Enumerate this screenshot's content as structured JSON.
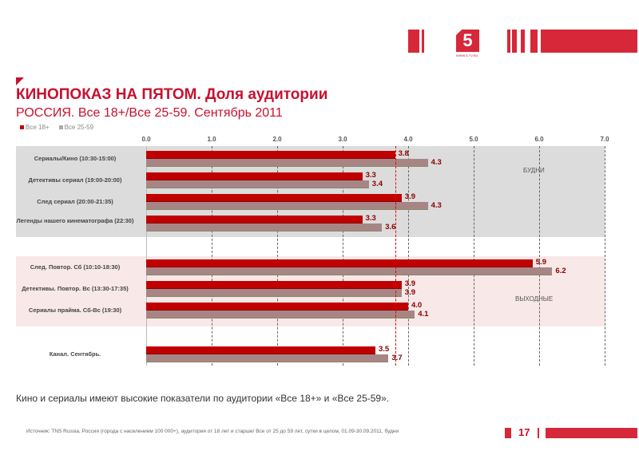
{
  "title": "КИНОПОКАЗ НА ПЯТОМ. Доля аудитории",
  "subtitle": "РОССИЯ. Все 18+/Все 25-59. Сентябрь 2011",
  "logo_text": "5",
  "logo_url": "WWW.5-TV.RU",
  "note": "Кино и сериалы имеют высокие показатели по аудитории «Все 18+» и «Все 25-59».",
  "source": "Источник: TNS Russia, Россия (города с населением 100 000+), аудитория от 18 лет и старше/ Все от 25 до 59 лет, сутки в целом, 01.09-30.09.2011, будни",
  "page_number": "17",
  "chart_data": {
    "type": "bar",
    "orientation": "horizontal",
    "xlim": [
      0,
      7
    ],
    "ticks": [
      "0.0",
      "1.0",
      "2.0",
      "3.0",
      "4.0",
      "5.0",
      "6.0",
      "7.0"
    ],
    "legend": [
      "Все 18+",
      "Все 25-59"
    ],
    "categories": [
      "Сериалы/Кино (10:30-15:00)",
      "Детективы сериал (19:00-20:00)",
      "След сериал (20:00-21:35)",
      "Легенды нашего кинематографа (22:30)",
      "След. Повтор. Сб (10:10-18:30)",
      "Детективы. Повтор. Вс (13:30-17:35)",
      "Сериалы прайма. Сб-Вс (19:30)",
      "Канал. Сентябрь."
    ],
    "series": [
      {
        "name": "Все 18+",
        "color": "#c00000",
        "values": [
          3.8,
          3.3,
          3.9,
          3.3,
          5.9,
          3.9,
          4.0,
          3.5
        ]
      },
      {
        "name": "Все 25-59",
        "color": "#a88585",
        "values": [
          4.3,
          3.4,
          4.3,
          3.6,
          6.2,
          3.9,
          4.1,
          3.7
        ]
      }
    ],
    "reference_line": 3.8,
    "groups": [
      {
        "label": "БУДНИ"
      },
      {
        "label": "ВЫХОДНЫЕ"
      }
    ]
  }
}
